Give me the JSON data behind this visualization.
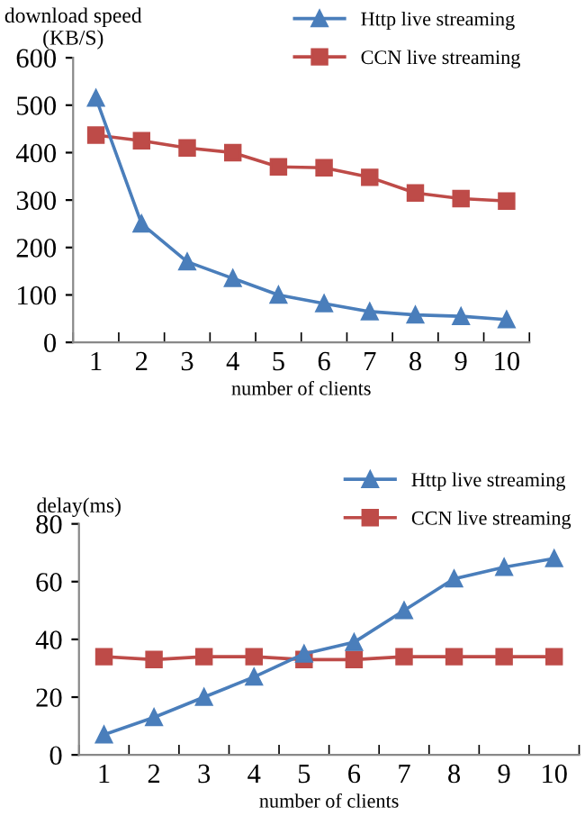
{
  "chart_data": [
    {
      "type": "line",
      "ylabel": "download speed\n(KB/S)",
      "xlabel": "number of clients",
      "categories": [
        "1",
        "2",
        "3",
        "4",
        "5",
        "6",
        "7",
        "8",
        "9",
        "10"
      ],
      "ylim": [
        0,
        600
      ],
      "yticks": [
        0,
        100,
        200,
        300,
        400,
        500,
        600
      ],
      "grid": false,
      "legend": "top right",
      "series": [
        {
          "name": "Http live streaming",
          "color": "#4a7ebb",
          "marker": "triangle",
          "values": [
            515,
            250,
            170,
            135,
            100,
            82,
            65,
            58,
            55,
            48
          ]
        },
        {
          "name": "CCN live streaming",
          "color": "#be4b48",
          "marker": "square",
          "values": [
            437,
            425,
            410,
            400,
            370,
            368,
            348,
            315,
            303,
            298
          ]
        }
      ]
    },
    {
      "type": "line",
      "ylabel": "delay(ms)",
      "xlabel": "number of clients",
      "categories": [
        "1",
        "2",
        "3",
        "4",
        "5",
        "6",
        "7",
        "8",
        "9",
        "10"
      ],
      "ylim": [
        0,
        80
      ],
      "yticks": [
        0,
        20,
        40,
        60,
        80
      ],
      "grid": false,
      "legend": "top right",
      "series": [
        {
          "name": "Http live streaming",
          "color": "#4a7ebb",
          "marker": "triangle",
          "values": [
            7,
            13,
            20,
            27,
            35,
            39,
            50,
            61,
            65,
            68
          ]
        },
        {
          "name": "CCN live streaming",
          "color": "#be4b48",
          "marker": "square",
          "values": [
            34,
            33,
            34,
            34,
            33,
            33,
            34,
            34,
            34,
            34
          ]
        }
      ]
    }
  ]
}
